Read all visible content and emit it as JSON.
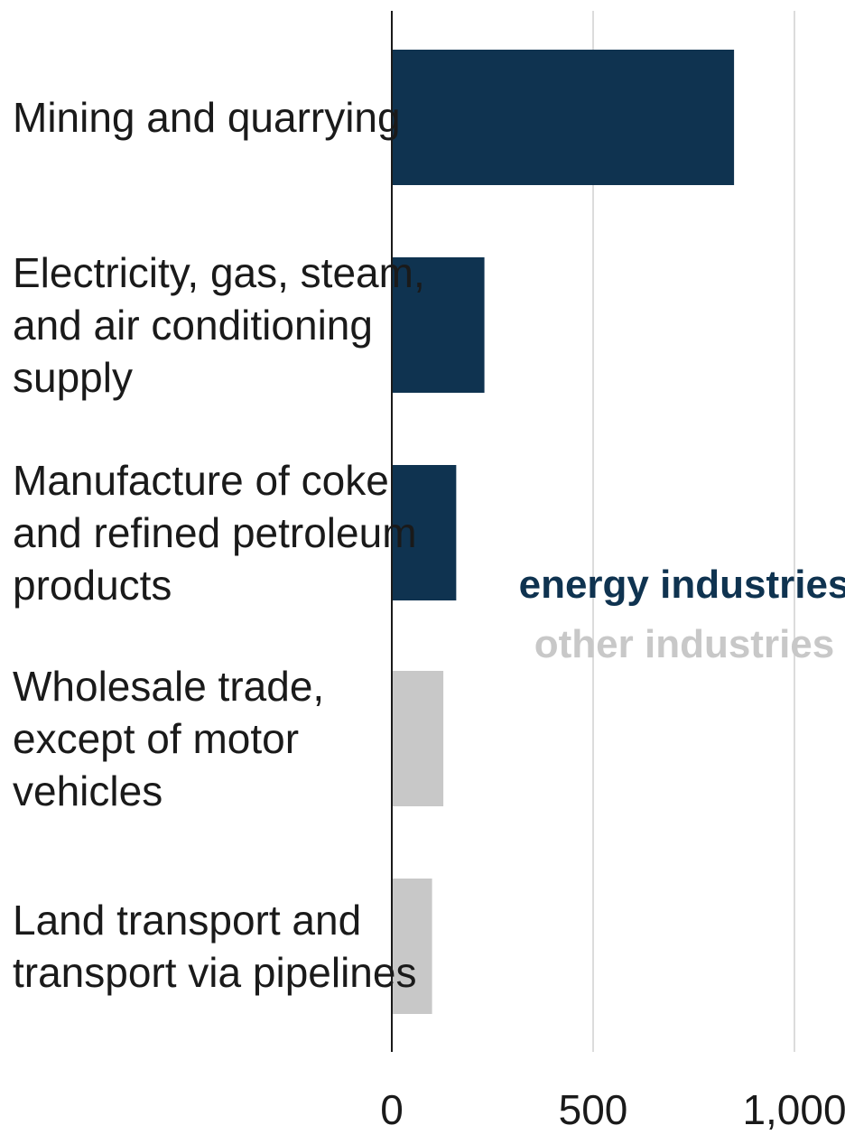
{
  "chart_data": {
    "type": "bar",
    "orientation": "horizontal",
    "categories": [
      [
        "Mining and quarrying"
      ],
      [
        "Electricity, gas, steam,",
        "and air conditioning",
        "supply"
      ],
      [
        "Manufacture of coke",
        "and refined petroleum",
        "products"
      ],
      [
        "Wholesale trade,",
        "except of motor",
        "vehicles"
      ],
      [
        "Land transport and",
        "transport via pipelines"
      ]
    ],
    "values": [
      850,
      230,
      160,
      128,
      100
    ],
    "groups": [
      "energy",
      "energy",
      "energy",
      "other",
      "other"
    ],
    "legend": [
      {
        "name": "energy industries",
        "group": "energy",
        "color": "#0f3350"
      },
      {
        "name": "other industries",
        "group": "other",
        "color": "#c8c8c8"
      }
    ],
    "xlim": [
      0,
      1000
    ],
    "ticks": [
      0,
      500,
      1000
    ],
    "tick_labels": [
      "0",
      "500",
      "1,000"
    ],
    "grid": "vertical",
    "legend_position": "center-right",
    "title": "",
    "xlabel": "",
    "ylabel": ""
  },
  "colors": {
    "energy": "#0f3350",
    "other": "#c8c8c8",
    "axis": "#1a1a1a",
    "grid": "#dcdcdc"
  }
}
